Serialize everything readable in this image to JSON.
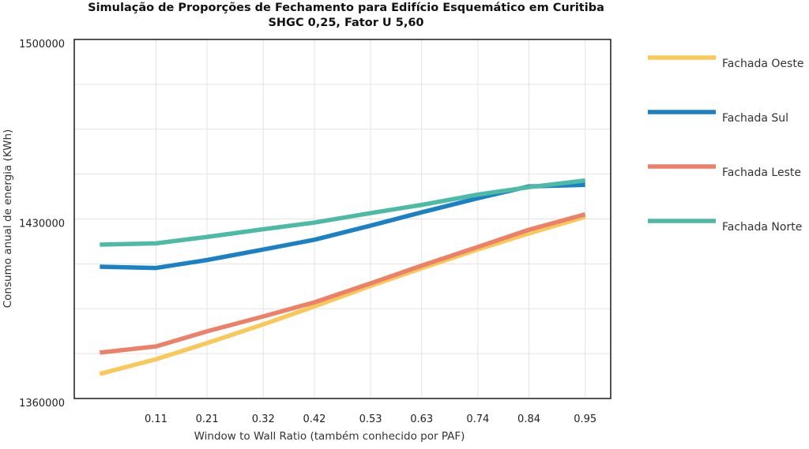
{
  "chart_data": {
    "type": "line",
    "title": "Simulação de Proporções de Fechamento para Edifício Esquemático em Curitiba",
    "subtitle": "SHGC 0,25, Fator U 5,60",
    "xlabel": "Window to Wall Ratio (também conhecido por PAF)",
    "ylabel": "Consumo anual de energia (KWh)",
    "x_tick_labels": [
      "0.11",
      "0.21",
      "0.32",
      "0.42",
      "0.53",
      "0.63",
      "0.74",
      "0.84",
      "0.95"
    ],
    "x": [
      0.0,
      0.11,
      0.21,
      0.32,
      0.42,
      0.53,
      0.63,
      0.74,
      0.84,
      0.95
    ],
    "xlim": [
      -0.05,
      1.0
    ],
    "y_tick_labels": [
      "1500000",
      "1430000",
      "1360000"
    ],
    "y_ticks": [
      1500000,
      1430000,
      1360000
    ],
    "ylim": [
      1360000,
      1500000
    ],
    "grid": true,
    "legend_position": "right",
    "series": [
      {
        "name": "Fachada Oeste",
        "color": "#F9C85A",
        "values": [
          1369600,
          1375300,
          1381600,
          1388900,
          1395900,
          1403900,
          1410800,
          1418100,
          1424400,
          1430800
        ]
      },
      {
        "name": "Fachada Sul",
        "color": "#1C80C4",
        "values": [
          1411400,
          1410900,
          1414000,
          1418100,
          1421900,
          1427400,
          1432600,
          1438100,
          1442700,
          1443300
        ]
      },
      {
        "name": "Fachada Leste",
        "color": "#EC8068",
        "values": [
          1377900,
          1380300,
          1386200,
          1392000,
          1397500,
          1404900,
          1411800,
          1419100,
          1425800,
          1431800
        ]
      },
      {
        "name": "Fachada Norte",
        "color": "#4CBAA4",
        "values": [
          1420000,
          1420500,
          1423000,
          1426000,
          1428600,
          1432300,
          1435500,
          1439500,
          1442400,
          1445000
        ]
      }
    ]
  }
}
